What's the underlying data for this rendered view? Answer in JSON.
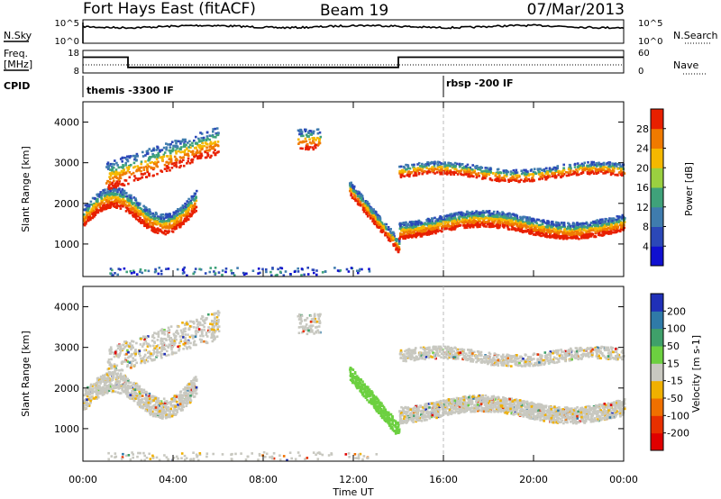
{
  "header": {
    "radar": "Fort Hays East (fitACF)",
    "beam": "Beam 19",
    "date": "07/Mar/2013"
  },
  "top_panel": {
    "left_label": "N.Sky",
    "right_label": "N.Search",
    "left_ticks": [
      "10^5",
      "10^0"
    ],
    "right_ticks": [
      "10^5",
      "10^0"
    ]
  },
  "freq_panel": {
    "left_label_1": "Freq.",
    "left_label_2": "[MHz]",
    "right_label": "Nave",
    "left_ticks": [
      "18",
      "8"
    ],
    "right_ticks": [
      "60",
      "0"
    ],
    "freq_steps": [
      {
        "t_start": 0,
        "t_end": 2,
        "freq": 15
      },
      {
        "t_start": 2,
        "t_end": 14,
        "freq": 10.5
      },
      {
        "t_start": 14,
        "t_end": 24,
        "freq": 15
      }
    ]
  },
  "cpid": {
    "label": "CPID",
    "entries": [
      {
        "t": 0,
        "text": "themis -3300 IF"
      },
      {
        "t": 16,
        "text": "rbsp -200 IF"
      }
    ]
  },
  "chart_data": [
    {
      "type": "heatmap",
      "title": "",
      "ylabel": "Slant Range [km]",
      "xlabel": "",
      "x_range": [
        0,
        24
      ],
      "y_range": [
        200,
        4500
      ],
      "y_ticks": [
        "1000",
        "2000",
        "3000",
        "4000"
      ],
      "colorbar": {
        "label": "Power [dB]",
        "ticks": [
          "4",
          "8",
          "12",
          "16",
          "20",
          "24",
          "28"
        ],
        "colors": [
          "#1010d0",
          "#2b48b8",
          "#3f7cae",
          "#3fa27a",
          "#9ad040",
          "#f5b800",
          "#f07a00",
          "#e82000"
        ]
      }
    },
    {
      "type": "heatmap",
      "title": "",
      "ylabel": "Slant Range [km]",
      "xlabel": "Time UT",
      "x_range": [
        0,
        24
      ],
      "y_range": [
        200,
        4500
      ],
      "y_ticks": [
        "1000",
        "2000",
        "3000",
        "4000"
      ],
      "x_ticks": [
        "00:00",
        "04:00",
        "08:00",
        "12:00",
        "16:00",
        "20:00",
        "00:00"
      ],
      "colorbar": {
        "label": "Velocity [m s-1]",
        "ticks": [
          "200",
          "100",
          "50",
          "15",
          "-15",
          "-50",
          "-100",
          "-200"
        ],
        "colors": [
          "#2030b8",
          "#2f7aa8",
          "#3fa06a",
          "#6cd040",
          "#c8c8c0",
          "#f0b000",
          "#f07000",
          "#e83000",
          "#e00000"
        ]
      }
    }
  ]
}
